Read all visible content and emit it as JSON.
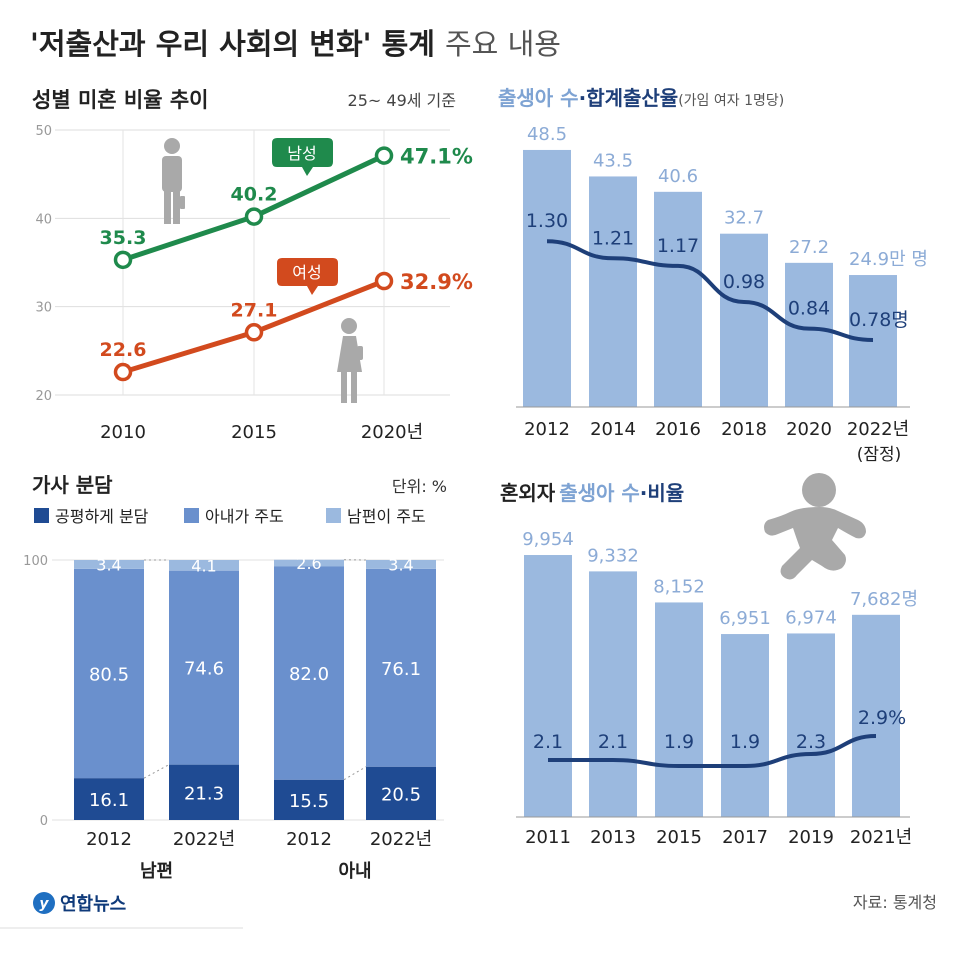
{
  "header": {
    "title_bold": "'저출산과 우리 사회의 변화' 통계",
    "title_light": "주요 내용"
  },
  "colors": {
    "male": "#1f8a4c",
    "female": "#d24a1e",
    "bar_light": "#9bb9df",
    "bar_mid": "#6a90cd",
    "bar_dark": "#1f4b93",
    "line_dark": "#1e3f79",
    "axis_gray": "#aaaaaa",
    "silhouette": "#a9a9a9"
  },
  "source": "자료: 통계청",
  "logo_text": "연합뉴스",
  "chart_data": [
    {
      "id": "unmarried",
      "type": "line",
      "title": "성별 미혼 비율 추이",
      "subtitle": "25~ 49세 기준",
      "x": [
        2010,
        2015,
        2020
      ],
      "x_tick_labels": [
        "2010",
        "2015",
        "2020년"
      ],
      "ylim": [
        20,
        50
      ],
      "y_ticks": [
        20,
        30,
        40,
        50
      ],
      "series": [
        {
          "name": "남성",
          "values": [
            35.3,
            40.2,
            47.1
          ],
          "labels": [
            "35.3",
            "40.2",
            "47.1%"
          ],
          "color": "#1f8a4c"
        },
        {
          "name": "여성",
          "values": [
            22.6,
            27.1,
            32.9
          ],
          "labels": [
            "22.6",
            "27.1",
            "32.9%"
          ],
          "color": "#d24a1e"
        }
      ],
      "grid": true
    },
    {
      "id": "births",
      "type": "bar",
      "title_light": "출생아 수",
      "title_sep": "·",
      "title_bold": "합계출산율",
      "title_note": "(가임 여자 1명당)",
      "categories": [
        "2012",
        "2014",
        "2016",
        "2018",
        "2020",
        "2022년"
      ],
      "category_note": "(잠정)",
      "series": [
        {
          "name": "출생아 수",
          "kind": "bar",
          "values": [
            48.5,
            43.5,
            40.6,
            32.7,
            27.2,
            24.9
          ],
          "labels": [
            "48.5",
            "43.5",
            "40.6",
            "32.7",
            "27.2",
            "24.9만 명"
          ]
        },
        {
          "name": "합계출산율",
          "kind": "line",
          "values": [
            1.3,
            1.21,
            1.17,
            0.98,
            0.84,
            0.78
          ],
          "labels": [
            "1.30",
            "1.21",
            "1.17",
            "0.98",
            "0.84",
            "0.78명"
          ]
        }
      ],
      "grid": false
    },
    {
      "id": "housework",
      "type": "bar",
      "stacked": true,
      "title": "가사 분담",
      "unit_label": "단위: %",
      "legend": [
        "공평하게 분담",
        "아내가 주도",
        "남편이 주도"
      ],
      "y_ticks": [
        0,
        100
      ],
      "categories": [
        "2012",
        "2022년",
        "2012",
        "2022년"
      ],
      "groups": [
        "남편",
        "아내"
      ],
      "series": [
        {
          "name": "공평하게 분담",
          "values": [
            16.1,
            21.3,
            15.5,
            20.5
          ]
        },
        {
          "name": "아내가 주도",
          "values": [
            80.5,
            74.6,
            82.0,
            76.1
          ]
        },
        {
          "name": "남편이 주도",
          "values": [
            3.4,
            4.1,
            2.6,
            3.4
          ]
        }
      ],
      "value_labels": [
        [
          "16.1",
          "21.3",
          "15.5",
          "20.5"
        ],
        [
          "80.5",
          "74.6",
          "82.0",
          "76.1"
        ],
        [
          "3.4",
          "4.1",
          "2.6",
          "3.4"
        ]
      ]
    },
    {
      "id": "out_of_wedlock",
      "type": "bar",
      "title_plain": "혼외자",
      "title_light": "출생아 수",
      "title_sep": "·",
      "title_bold": "비율",
      "categories": [
        "2011",
        "2013",
        "2015",
        "2017",
        "2019",
        "2021년"
      ],
      "series": [
        {
          "name": "출생아 수",
          "kind": "bar",
          "values": [
            9954,
            9332,
            8152,
            6951,
            6974,
            7682
          ],
          "labels": [
            "9,954",
            "9,332",
            "8,152",
            "6,951",
            "6,974",
            "7,682명"
          ]
        },
        {
          "name": "비율",
          "kind": "line",
          "values": [
            2.1,
            2.1,
            1.9,
            1.9,
            2.3,
            2.9
          ],
          "labels": [
            "2.1",
            "2.1",
            "1.9",
            "1.9",
            "2.3",
            "2.9%"
          ]
        }
      ]
    }
  ]
}
